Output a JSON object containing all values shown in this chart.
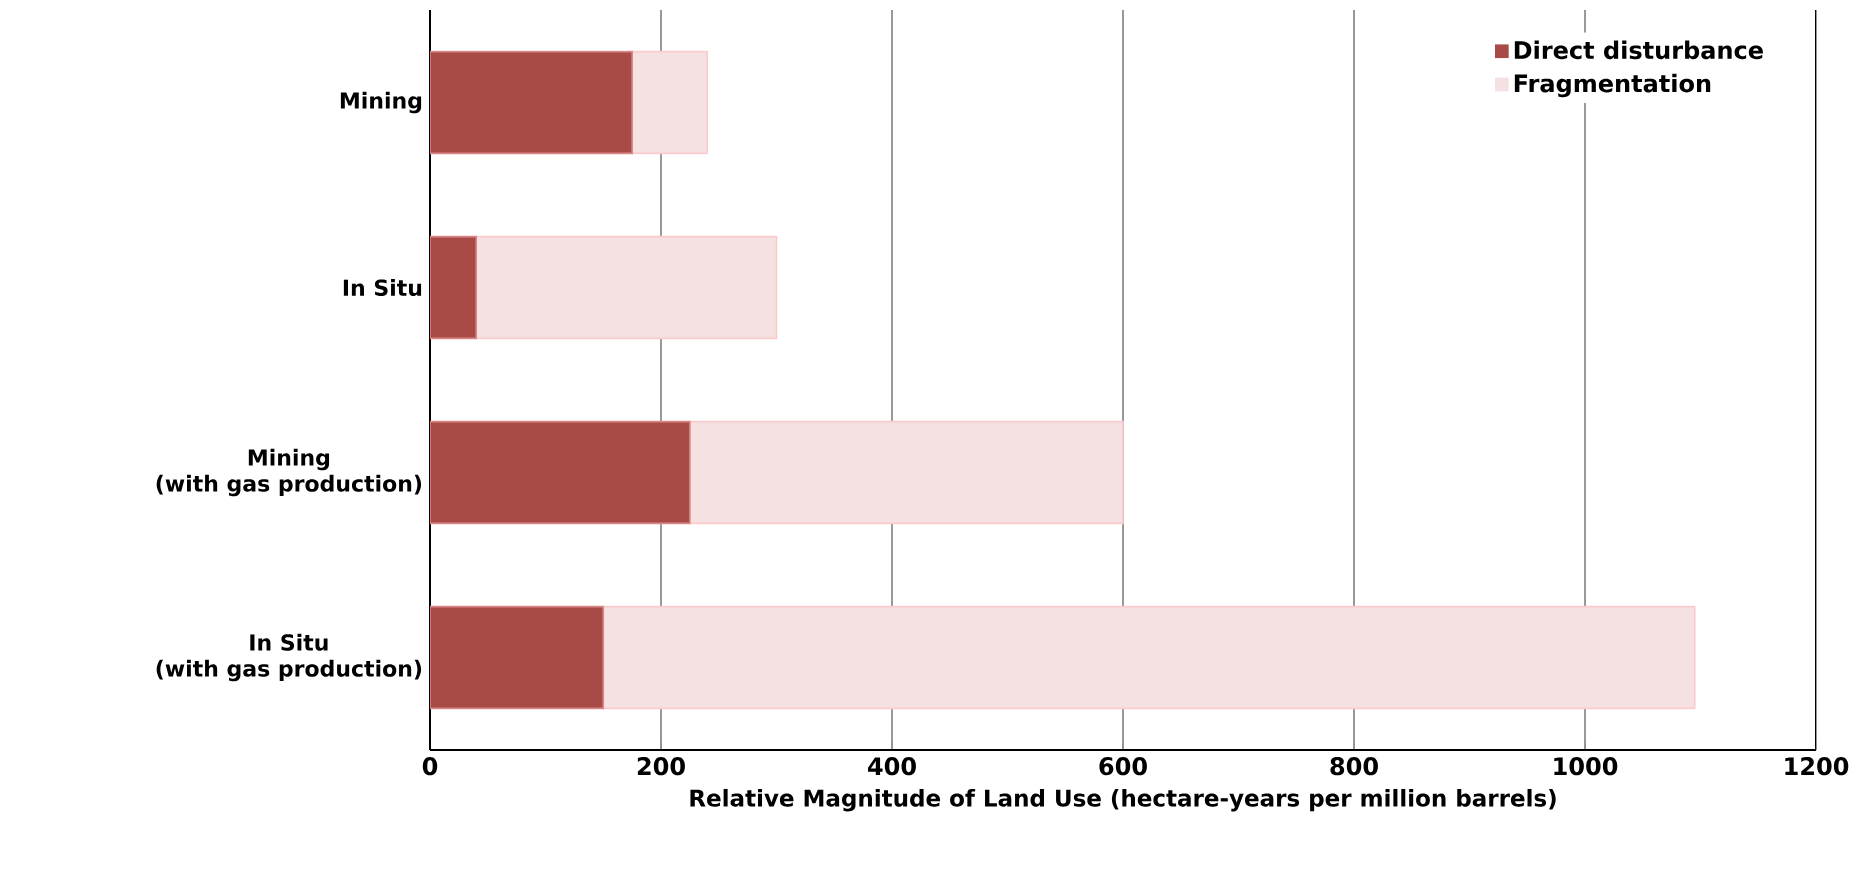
{
  "chart_data": {
    "type": "bar",
    "orientation": "horizontal",
    "stacked": true,
    "xlabel": "Relative Magnitude of Land Use (hectare-years per million barrels)",
    "categories": [
      "Mining",
      "In Situ",
      "Mining\n(with gas production)",
      "In Situ\n(with gas production)"
    ],
    "series": [
      {
        "name": "Direct disturbance",
        "color": "#a84b47",
        "values": [
          175,
          40,
          225,
          150
        ]
      },
      {
        "name": "Fragmentation",
        "color": "#f5e1e2",
        "values": [
          65,
          260,
          375,
          945
        ]
      }
    ],
    "xlim": [
      0,
      1200
    ],
    "xticks": [
      0,
      200,
      400,
      600,
      800,
      1000,
      1200
    ],
    "grid": "x",
    "legend": "top right"
  }
}
